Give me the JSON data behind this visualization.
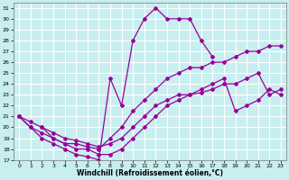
{
  "xlabel": "Windchill (Refroidissement éolien,°C)",
  "bg_color": "#c8eef0",
  "grid_color": "#ffffff",
  "line_color": "#990099",
  "xlim": [
    -0.5,
    23.5
  ],
  "ylim": [
    17,
    31.5
  ],
  "xticks": [
    0,
    1,
    2,
    3,
    4,
    5,
    6,
    7,
    8,
    9,
    10,
    11,
    12,
    13,
    14,
    15,
    16,
    17,
    18,
    19,
    20,
    21,
    22,
    23
  ],
  "yticks": [
    17,
    18,
    19,
    20,
    21,
    22,
    23,
    24,
    25,
    26,
    27,
    28,
    29,
    30,
    31
  ],
  "curve1_x": [
    0,
    1,
    2,
    3,
    4,
    5,
    6,
    7,
    8,
    9,
    10,
    11,
    12,
    13,
    14,
    15,
    16,
    17
  ],
  "curve1_y": [
    21,
    20,
    19,
    18.5,
    18,
    17.5,
    17.3,
    17,
    24.5,
    22,
    28,
    30,
    31,
    30,
    30,
    30,
    28,
    26.5
  ],
  "curve2_x": [
    0,
    1,
    2,
    3,
    4,
    5,
    6,
    7,
    8,
    9,
    10,
    11,
    12,
    13,
    14,
    15,
    16,
    17,
    18,
    19,
    20,
    21,
    22,
    23
  ],
  "curve2_y": [
    21,
    20,
    19.5,
    19,
    18.5,
    18.5,
    18.2,
    18,
    19,
    20,
    21.5,
    22.5,
    23.5,
    24.5,
    25,
    25.5,
    25.5,
    26,
    26,
    26.5,
    27,
    27,
    27.5,
    27.5
  ],
  "curve3_x": [
    0,
    1,
    2,
    3,
    4,
    5,
    6,
    7,
    8,
    9,
    10,
    11,
    12,
    13,
    14,
    15,
    16,
    17,
    18,
    19,
    20,
    21,
    22,
    23
  ],
  "curve3_y": [
    21,
    20.5,
    20,
    19.5,
    19,
    18.8,
    18.5,
    18.2,
    18.5,
    19,
    20,
    21,
    22,
    22.5,
    23,
    23,
    23.2,
    23.5,
    24,
    24,
    24.5,
    25,
    23,
    23.5
  ],
  "curve4_x": [
    2,
    3,
    4,
    5,
    6,
    7,
    8,
    9,
    10,
    11,
    12,
    13,
    14,
    15,
    16,
    17,
    18,
    19,
    20,
    21,
    22,
    23
  ],
  "curve4_y": [
    20,
    19,
    18.5,
    18,
    18,
    17.5,
    17.5,
    18,
    19,
    20,
    21,
    22,
    22.5,
    23,
    23.5,
    24,
    24.5,
    21.5,
    22,
    22.5,
    23.5,
    23
  ]
}
